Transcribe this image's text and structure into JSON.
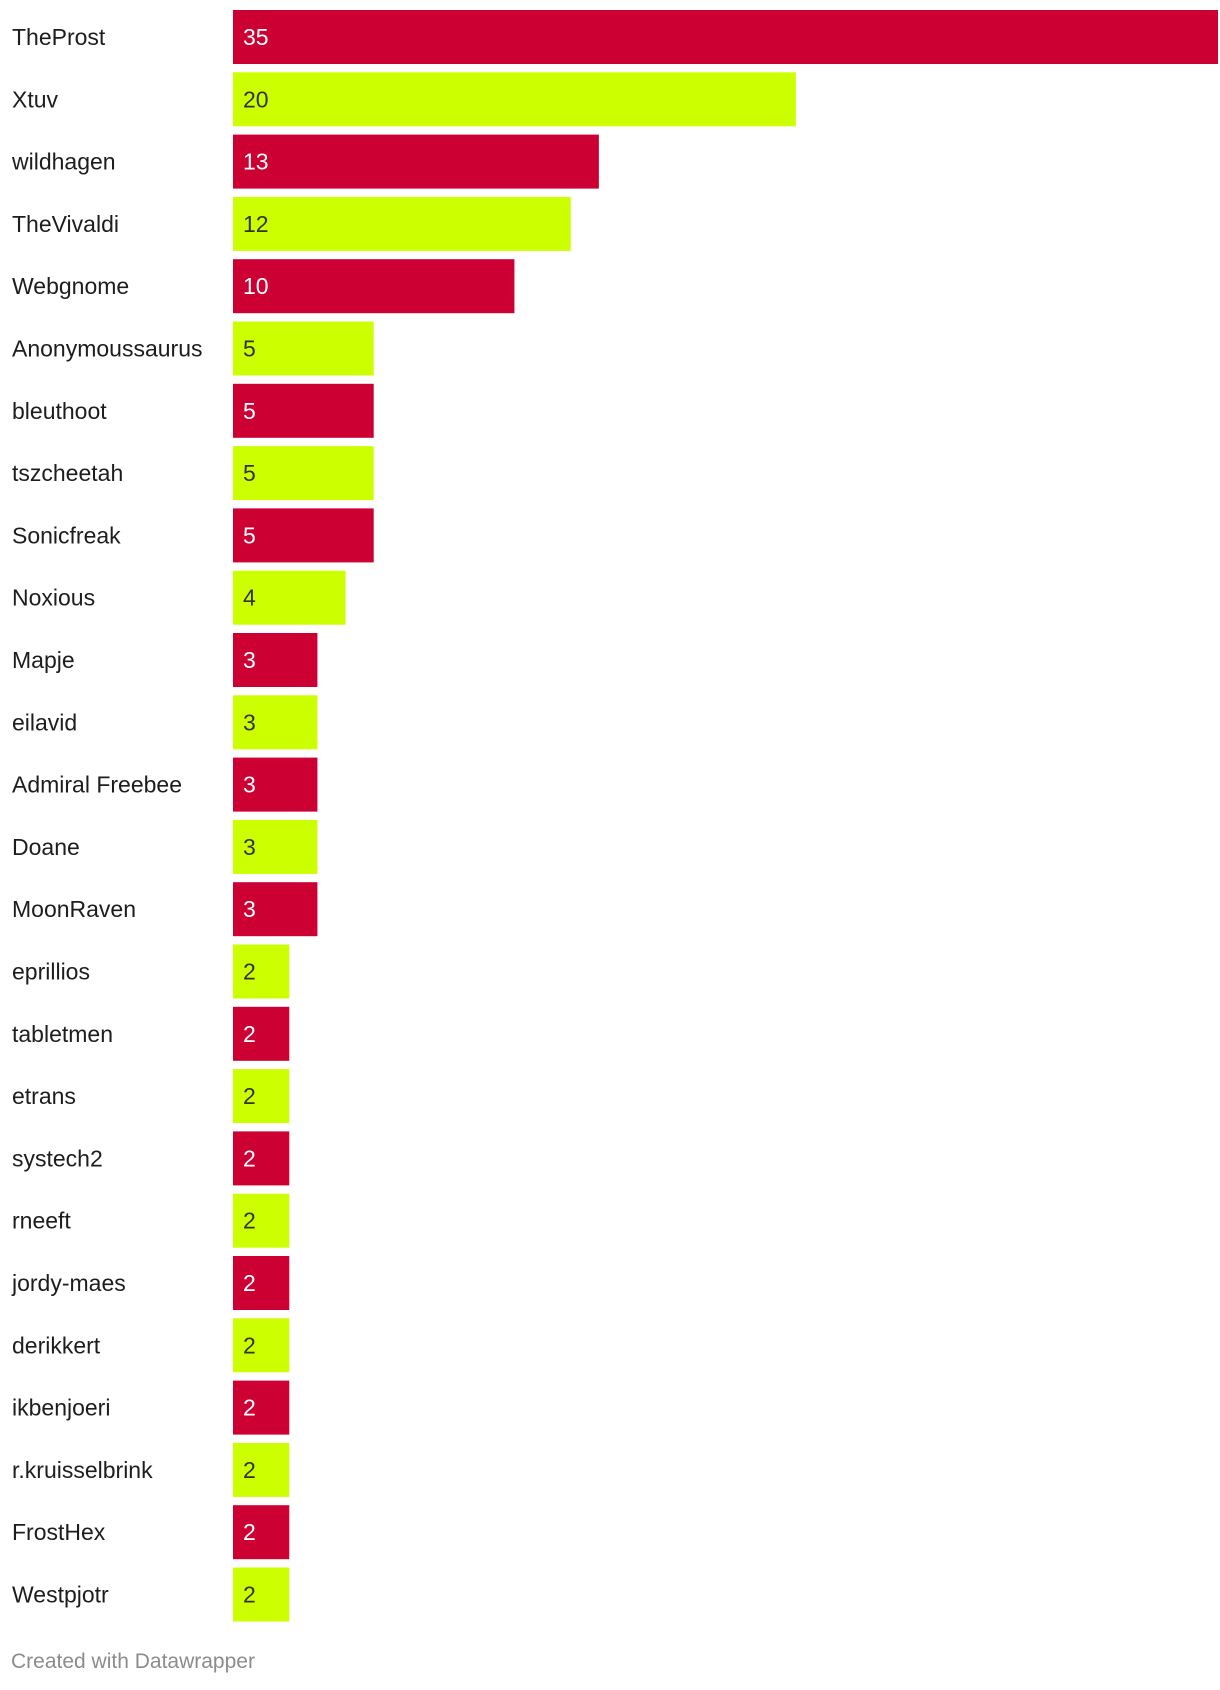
{
  "chart_data": {
    "type": "bar",
    "orientation": "horizontal",
    "title": "",
    "xlabel": "",
    "ylabel": "",
    "xlim": [
      0,
      35
    ],
    "grid": false,
    "legend": "none",
    "categories": [
      "TheProst",
      "Xtuv",
      "wildhagen",
      "TheVivaldi",
      "Webgnome",
      "Anonymoussaurus",
      "bleuthoot",
      "tszcheetah",
      "Sonicfreak",
      "Noxious",
      "Mapje",
      "eilavid",
      "Admiral Freebee",
      "Doane",
      "MoonRaven",
      "eprillios",
      "tabletmen",
      "etrans",
      "systech2",
      "rneeft",
      "jordy-maes",
      "derikkert",
      "ikbenjoeri",
      "r.kruisselbrink",
      "FrostHex",
      "Westpjotr"
    ],
    "values": [
      35,
      20,
      13,
      12,
      10,
      5,
      5,
      5,
      5,
      4,
      3,
      3,
      3,
      3,
      3,
      2,
      2,
      2,
      2,
      2,
      2,
      2,
      2,
      2,
      2,
      2
    ],
    "data_labels": [
      "35",
      "20",
      "13",
      "12",
      "10",
      "5",
      "5",
      "5",
      "5",
      "4",
      "3",
      "3",
      "3",
      "3",
      "3",
      "2",
      "2",
      "2",
      "2",
      "2",
      "2",
      "2",
      "2",
      "2",
      "2",
      "2"
    ],
    "colors": {
      "odd": "#cc0033",
      "even": "#ccff00",
      "label_on_odd": "#ffffff",
      "label_on_even": "#333333"
    }
  },
  "footer": {
    "credit": "Created with Datawrapper"
  }
}
